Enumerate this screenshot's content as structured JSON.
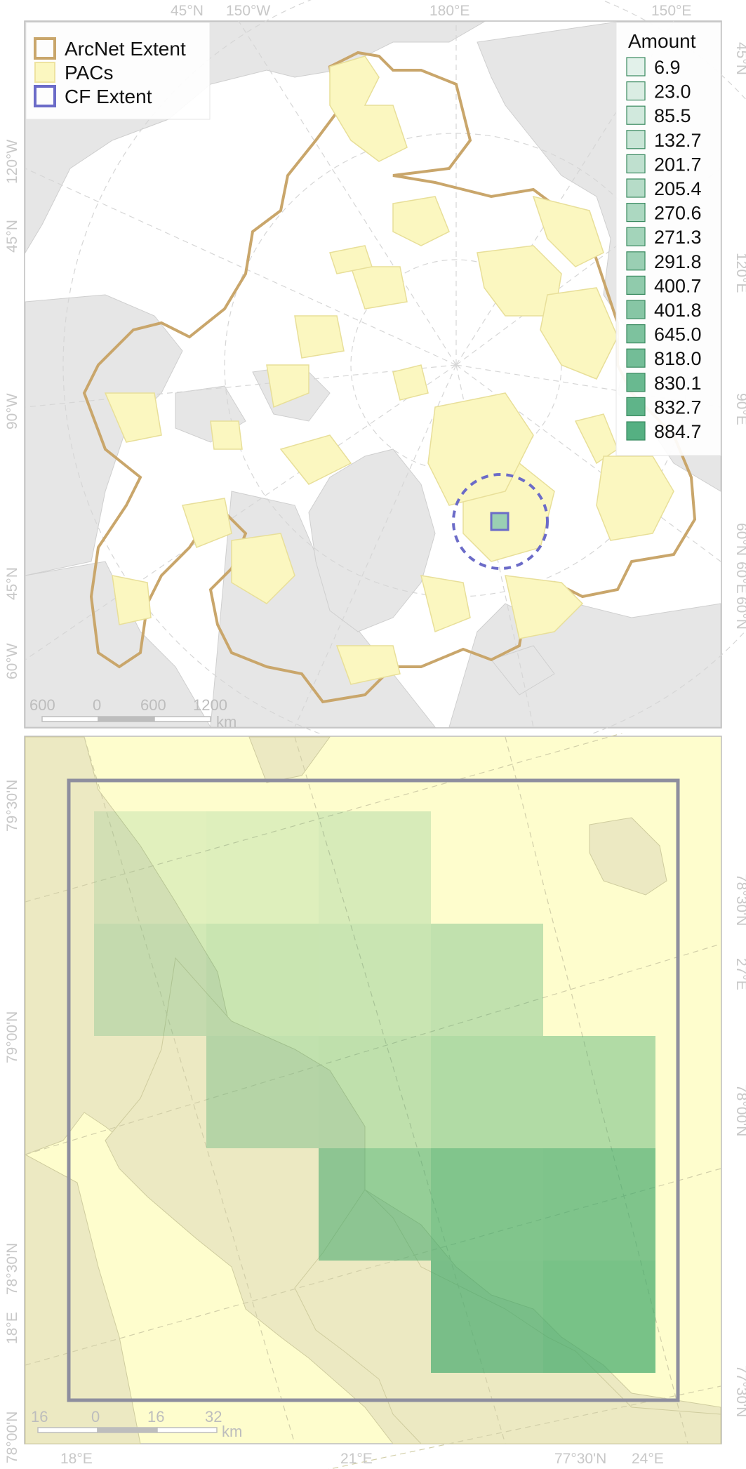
{
  "top_map": {
    "legend": {
      "items": [
        {
          "label": "ArcNet Extent",
          "stroke": "#c9a66b",
          "fill": "none"
        },
        {
          "label": "PACs",
          "stroke": "#eee3a0",
          "fill": "#fbf7c0"
        },
        {
          "label": "CF Extent",
          "stroke": "#6b6bc8",
          "fill": "none"
        }
      ]
    },
    "amount_legend": {
      "title": "Amount",
      "entries": [
        {
          "label": "6.9",
          "color": "#e2f1ea"
        },
        {
          "label": "23.0",
          "color": "#daede3"
        },
        {
          "label": "85.5",
          "color": "#d1e9dd"
        },
        {
          "label": "132.7",
          "color": "#c8e5d6"
        },
        {
          "label": "201.7",
          "color": "#bfe0cf"
        },
        {
          "label": "205.4",
          "color": "#b6dcc8"
        },
        {
          "label": "270.6",
          "color": "#acd8c1"
        },
        {
          "label": "271.3",
          "color": "#a3d4ba"
        },
        {
          "label": "291.8",
          "color": "#9acfb3"
        },
        {
          "label": "400.7",
          "color": "#90cbac"
        },
        {
          "label": "401.8",
          "color": "#87c6a5"
        },
        {
          "label": "645.0",
          "color": "#7dc29e"
        },
        {
          "label": "818.0",
          "color": "#73bd97"
        },
        {
          "label": "830.1",
          "color": "#69b990"
        },
        {
          "label": "832.7",
          "color": "#5fb489"
        },
        {
          "label": "884.7",
          "color": "#55b082"
        }
      ]
    },
    "graticule_labels": [
      "45°N",
      "150°W",
      "180°E",
      "150°E",
      "120°W",
      "45°N",
      "45°N",
      "120°E",
      "90°W",
      "90°E",
      "45°N",
      "60°N",
      "60°E",
      "60°N",
      "60°W"
    ],
    "scalebar": {
      "ticks": [
        "600",
        "0",
        "600",
        "1200"
      ],
      "unit": "km"
    }
  },
  "bottom_map": {
    "graticule_labels": [
      "79°30'N",
      "79°00'N",
      "78°30'N",
      "18°E",
      "78°00'N",
      "78°30'N",
      "27°E",
      "78°00'N",
      "77°30'N",
      "77°30'N",
      "18°E",
      "21°E",
      "24°E"
    ],
    "scalebar": {
      "ticks": [
        "16",
        "0",
        "16",
        "32"
      ],
      "unit": "km"
    },
    "grid_cells": [
      {
        "row": 0,
        "col": 0,
        "amount": 6.9
      },
      {
        "row": 0,
        "col": 1,
        "amount": 23.0
      },
      {
        "row": 0,
        "col": 2,
        "amount": 85.5
      },
      {
        "row": 1,
        "col": 0,
        "amount": 132.7
      },
      {
        "row": 1,
        "col": 1,
        "amount": 201.7
      },
      {
        "row": 1,
        "col": 2,
        "amount": 205.4
      },
      {
        "row": 1,
        "col": 3,
        "amount": 270.6
      },
      {
        "row": 2,
        "col": 1,
        "amount": 271.3
      },
      {
        "row": 2,
        "col": 2,
        "amount": 291.8
      },
      {
        "row": 2,
        "col": 3,
        "amount": 400.7
      },
      {
        "row": 2,
        "col": 4,
        "amount": 401.8
      },
      {
        "row": 3,
        "col": 2,
        "amount": 645.0
      },
      {
        "row": 3,
        "col": 3,
        "amount": 818.0
      },
      {
        "row": 3,
        "col": 4,
        "amount": 830.1
      },
      {
        "row": 4,
        "col": 3,
        "amount": 832.7
      },
      {
        "row": 4,
        "col": 4,
        "amount": 884.7
      }
    ],
    "grid_color": "#3fa86a"
  },
  "colors": {
    "land": "#e6e6e6",
    "ocean": "#ffffff",
    "pac_fill": "#fbf7c0",
    "arcnet": "#c9a66b",
    "cf_extent": "#6b6bc8",
    "bottom_land": "#ece9c2",
    "bottom_sea": "#fefdcd"
  }
}
